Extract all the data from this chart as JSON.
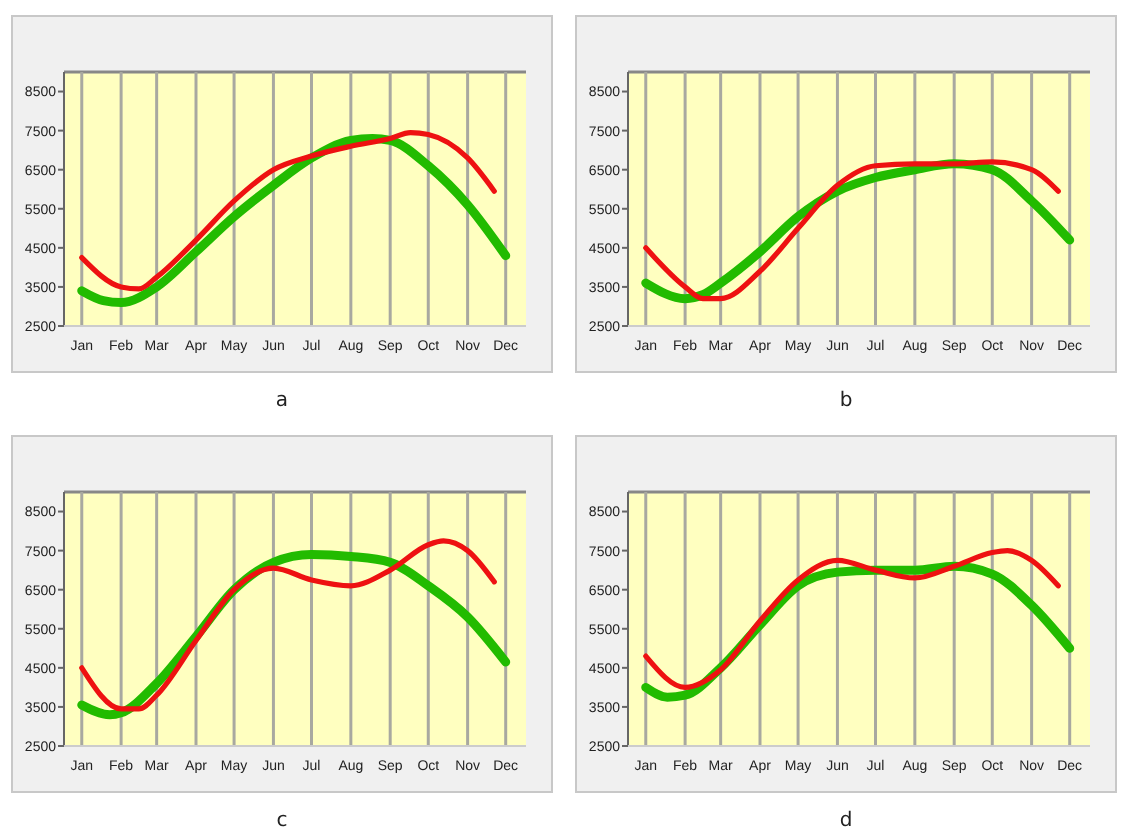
{
  "chart_data": [
    {
      "type": "line",
      "title": "a",
      "xlim": [
        "--01-01",
        "--12-31"
      ],
      "ylim": [
        2500,
        9000
      ],
      "yticks": [
        2500,
        3500,
        4500,
        5500,
        6500,
        7500,
        8500
      ],
      "xticks": [
        {
          "value": "--01-15",
          "label": "Jan"
        },
        {
          "value": "--02-15",
          "label": "Feb"
        },
        {
          "value": "--03-15",
          "label": "Mar"
        },
        {
          "value": "--04-15",
          "label": "Apr"
        },
        {
          "value": "--05-15",
          "label": "May"
        },
        {
          "value": "--06-15",
          "label": "Jun"
        },
        {
          "value": "--07-15",
          "label": "Jul"
        },
        {
          "value": "--08-15",
          "label": "Aug"
        },
        {
          "value": "--09-15",
          "label": "Sep"
        },
        {
          "value": "--10-15",
          "label": "Oct"
        },
        {
          "value": "--11-15",
          "label": "Nov"
        },
        {
          "value": "--12-15",
          "label": "Dec"
        }
      ],
      "grid": "x",
      "marker": "none",
      "line_style": "solid",
      "series": [
        {
          "color": "#22bb00",
          "x": [
            "--01-15",
            "--02-01",
            "--02-15",
            "--03-15",
            "--04-15",
            "--05-15",
            "--06-15",
            "--07-15",
            "--08-15",
            "--09-01",
            "--09-15",
            "--10-15",
            "--11-15",
            "--12-15"
          ],
          "values": [
            3400,
            3150,
            3100,
            3500,
            4400,
            5300,
            6100,
            6800,
            7250,
            7300,
            7250,
            6600,
            5600,
            4300
          ]
        },
        {
          "color": "#ee1111",
          "x": [
            "--01-15",
            "--02-15",
            "--03-01",
            "--03-15",
            "--04-15",
            "--05-15",
            "--06-15",
            "--07-15",
            "--08-15",
            "--09-15",
            "--10-01",
            "--10-15",
            "--11-15",
            "--12-06"
          ],
          "values": [
            4250,
            3500,
            3450,
            3750,
            4700,
            5700,
            6500,
            6850,
            7100,
            7300,
            7450,
            7400,
            6800,
            5950
          ]
        }
      ]
    },
    {
      "type": "line",
      "title": "b",
      "xlim": [
        "--01-01",
        "--12-31"
      ],
      "ylim": [
        2500,
        9000
      ],
      "yticks": [
        2500,
        3500,
        4500,
        5500,
        6500,
        7500,
        8500
      ],
      "xticks": [
        {
          "value": "--01-15",
          "label": "Jan"
        },
        {
          "value": "--02-15",
          "label": "Feb"
        },
        {
          "value": "--03-15",
          "label": "Mar"
        },
        {
          "value": "--04-15",
          "label": "Apr"
        },
        {
          "value": "--05-15",
          "label": "May"
        },
        {
          "value": "--06-15",
          "label": "Jun"
        },
        {
          "value": "--07-15",
          "label": "Jul"
        },
        {
          "value": "--08-15",
          "label": "Aug"
        },
        {
          "value": "--09-15",
          "label": "Sep"
        },
        {
          "value": "--10-15",
          "label": "Oct"
        },
        {
          "value": "--11-15",
          "label": "Nov"
        },
        {
          "value": "--12-15",
          "label": "Dec"
        }
      ],
      "grid": "x",
      "marker": "none",
      "line_style": "solid",
      "series": [
        {
          "color": "#22bb00",
          "x": [
            "--01-15",
            "--02-15",
            "--03-01",
            "--03-15",
            "--04-15",
            "--05-15",
            "--06-15",
            "--07-15",
            "--08-15",
            "--09-15",
            "--10-15",
            "--11-15",
            "--12-15"
          ],
          "values": [
            3600,
            3200,
            3300,
            3600,
            4400,
            5300,
            5950,
            6300,
            6500,
            6650,
            6500,
            5700,
            4700
          ]
        },
        {
          "color": "#ee1111",
          "x": [
            "--01-15",
            "--02-15",
            "--03-01",
            "--03-15",
            "--04-15",
            "--05-15",
            "--06-15",
            "--07-15",
            "--08-15",
            "--09-15",
            "--10-15",
            "--11-15",
            "--12-06"
          ],
          "values": [
            4500,
            3500,
            3200,
            3200,
            3900,
            5000,
            6100,
            6600,
            6650,
            6650,
            6700,
            6500,
            5950
          ]
        }
      ]
    },
    {
      "type": "line",
      "title": "c",
      "xlim": [
        "--01-01",
        "--12-31"
      ],
      "ylim": [
        2500,
        9000
      ],
      "yticks": [
        2500,
        3500,
        4500,
        5500,
        6500,
        7500,
        8500
      ],
      "xticks": [
        {
          "value": "--01-15",
          "label": "Jan"
        },
        {
          "value": "--02-15",
          "label": "Feb"
        },
        {
          "value": "--03-15",
          "label": "Mar"
        },
        {
          "value": "--04-15",
          "label": "Apr"
        },
        {
          "value": "--05-15",
          "label": "May"
        },
        {
          "value": "--06-15",
          "label": "Jun"
        },
        {
          "value": "--07-15",
          "label": "Jul"
        },
        {
          "value": "--08-15",
          "label": "Aug"
        },
        {
          "value": "--09-15",
          "label": "Sep"
        },
        {
          "value": "--10-15",
          "label": "Oct"
        },
        {
          "value": "--11-15",
          "label": "Nov"
        },
        {
          "value": "--12-15",
          "label": "Dec"
        }
      ],
      "grid": "x",
      "marker": "none",
      "line_style": "solid",
      "series": [
        {
          "color": "#22bb00",
          "x": [
            "--01-15",
            "--02-06",
            "--02-15",
            "--03-15",
            "--04-15",
            "--05-15",
            "--06-15",
            "--07-15",
            "--08-15",
            "--09-15",
            "--10-15",
            "--11-15",
            "--12-15"
          ],
          "values": [
            3550,
            3300,
            3350,
            4100,
            5300,
            6500,
            7200,
            7400,
            7350,
            7200,
            6600,
            5800,
            4650
          ]
        },
        {
          "color": "#ee1111",
          "x": [
            "--01-15",
            "--02-15",
            "--03-01",
            "--03-15",
            "--04-15",
            "--05-15",
            "--06-15",
            "--07-15",
            "--08-15",
            "--09-15",
            "--10-15",
            "--10-27",
            "--11-15",
            "--12-06"
          ],
          "values": [
            4500,
            3450,
            3450,
            3800,
            5200,
            6500,
            7050,
            6750,
            6600,
            7000,
            7650,
            7750,
            7500,
            6700
          ]
        }
      ]
    },
    {
      "type": "line",
      "title": "d",
      "xlim": [
        "--01-01",
        "--12-31"
      ],
      "ylim": [
        2500,
        9000
      ],
      "yticks": [
        2500,
        3500,
        4500,
        5500,
        6500,
        7500,
        8500
      ],
      "xticks": [
        {
          "value": "--01-15",
          "label": "Jan"
        },
        {
          "value": "--02-15",
          "label": "Feb"
        },
        {
          "value": "--03-15",
          "label": "Mar"
        },
        {
          "value": "--04-15",
          "label": "Apr"
        },
        {
          "value": "--05-15",
          "label": "May"
        },
        {
          "value": "--06-15",
          "label": "Jun"
        },
        {
          "value": "--07-15",
          "label": "Jul"
        },
        {
          "value": "--08-15",
          "label": "Aug"
        },
        {
          "value": "--09-15",
          "label": "Sep"
        },
        {
          "value": "--10-15",
          "label": "Oct"
        },
        {
          "value": "--11-15",
          "label": "Nov"
        },
        {
          "value": "--12-15",
          "label": "Dec"
        }
      ],
      "grid": "x",
      "marker": "none",
      "line_style": "solid",
      "series": [
        {
          "color": "#22bb00",
          "x": [
            "--01-15",
            "--02-01",
            "--02-15",
            "--03-15",
            "--04-15",
            "--05-15",
            "--06-15",
            "--07-15",
            "--08-15",
            "--09-15",
            "--10-15",
            "--11-15",
            "--12-15"
          ],
          "values": [
            4000,
            3750,
            3800,
            4500,
            5600,
            6600,
            6950,
            7000,
            7000,
            7100,
            6900,
            6100,
            5000
          ]
        },
        {
          "color": "#ee1111",
          "x": [
            "--01-15",
            "--02-15",
            "--03-15",
            "--04-15",
            "--05-15",
            "--06-15",
            "--07-15",
            "--08-15",
            "--09-15",
            "--10-15",
            "--10-27",
            "--11-15",
            "--12-06"
          ],
          "values": [
            4800,
            4000,
            4450,
            5700,
            6750,
            7250,
            7000,
            6800,
            7100,
            7450,
            7500,
            7250,
            6600
          ]
        }
      ]
    }
  ]
}
